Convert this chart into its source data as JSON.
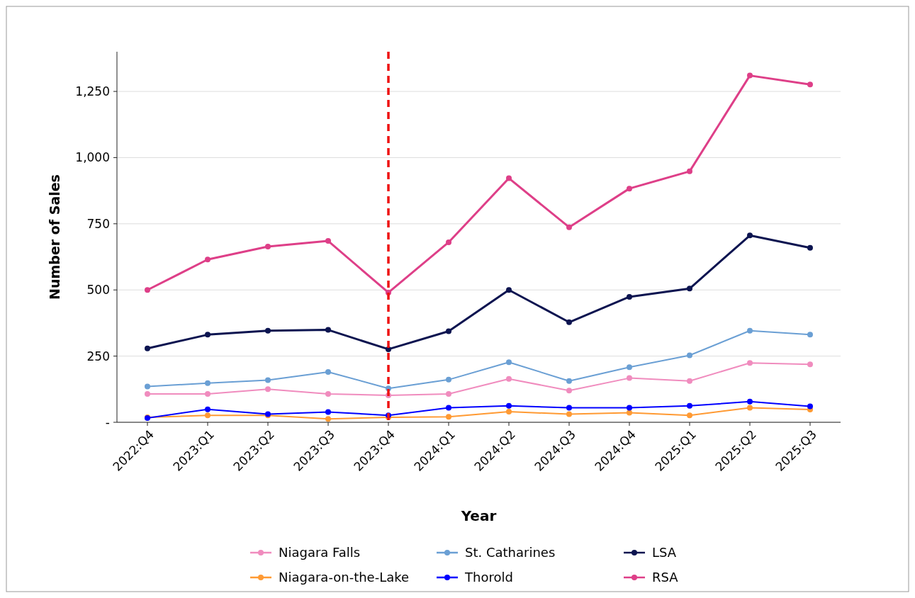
{
  "chart_data": {
    "type": "line",
    "xlabel": "Year",
    "ylabel": "Number of Sales",
    "categories": [
      "2022:Q4",
      "2023:Q1",
      "2023:Q2",
      "2023:Q3",
      "2023:Q4",
      "2024:Q1",
      "2024:Q2",
      "2024:Q3",
      "2024:Q4",
      "2025:Q1",
      "2025:Q2",
      "2025:Q3"
    ],
    "series": [
      {
        "name": "Niagara Falls",
        "color": "#f08cbe",
        "values": [
          107,
          107,
          125,
          107,
          102,
          107,
          164,
          120,
          167,
          156,
          224,
          219
        ]
      },
      {
        "name": "Niagara-on-the-Lake",
        "color": "#ff9a33",
        "values": [
          19,
          26,
          26,
          13,
          19,
          21,
          40,
          31,
          36,
          26,
          55,
          48
        ]
      },
      {
        "name": "St. Catharines",
        "color": "#6a9fd4",
        "values": [
          135,
          148,
          159,
          190,
          128,
          161,
          227,
          156,
          208,
          253,
          346,
          331
        ]
      },
      {
        "name": "Thorold",
        "color": "#0000ff",
        "values": [
          16,
          49,
          31,
          39,
          26,
          55,
          62,
          55,
          55,
          62,
          78,
          60
        ]
      },
      {
        "name": "LSA",
        "color": "#0c1450",
        "values": [
          279,
          331,
          346,
          349,
          276,
          344,
          500,
          378,
          474,
          505,
          706,
          659
        ]
      },
      {
        "name": "RSA",
        "color": "#de3f88",
        "values": [
          500,
          615,
          664,
          685,
          490,
          680,
          922,
          737,
          883,
          948,
          1310,
          1276
        ]
      }
    ],
    "ylim": [
      0,
      1400
    ],
    "yticks": [
      {
        "value": 0,
        "label": "-"
      },
      {
        "value": 250,
        "label": "250"
      },
      {
        "value": 500,
        "label": "500"
      },
      {
        "value": 750,
        "label": "750"
      },
      {
        "value": 1000,
        "label": "1,000"
      },
      {
        "value": 1250,
        "label": "1,250"
      }
    ],
    "grid": "y",
    "legend": "bottom",
    "marker": "circle",
    "ref_lines": [
      {
        "axis": "x",
        "value": "2023:Q4",
        "color": "#ee1111",
        "line_style": "dashed"
      }
    ]
  }
}
